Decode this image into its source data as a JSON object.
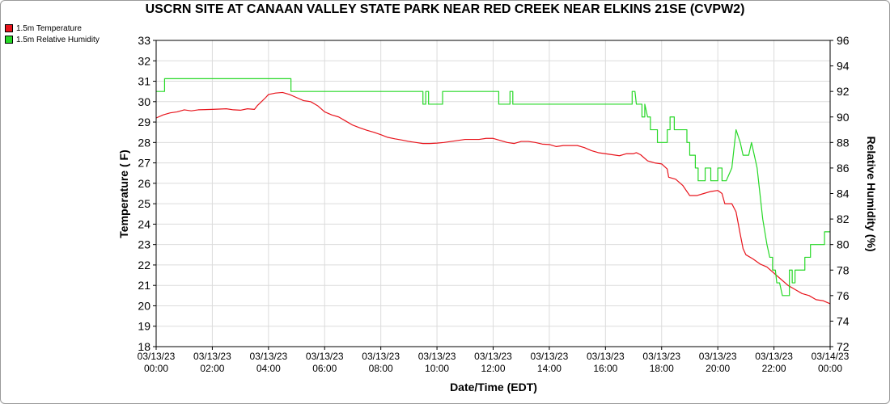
{
  "chart_data": {
    "type": "line",
    "title": "USCRN SITE AT CANAAN VALLEY STATE PARK NEAR RED CREEK NEAR ELKINS 21SE (CVPW2)",
    "xlabel": "Date/Time (EDT)",
    "ylabel_left": "Temperature ( F)",
    "ylabel_right": "Relative Humidity (%)",
    "ylim_left": [
      18,
      33
    ],
    "ylim_right": [
      72,
      96
    ],
    "xlim_hours": [
      0,
      24
    ],
    "grid": true,
    "legend_position": "top-left",
    "x_ticks": [
      {
        "date": "03/13/23",
        "time": "00:00",
        "hour": 0
      },
      {
        "date": "03/13/23",
        "time": "02:00",
        "hour": 2
      },
      {
        "date": "03/13/23",
        "time": "04:00",
        "hour": 4
      },
      {
        "date": "03/13/23",
        "time": "06:00",
        "hour": 6
      },
      {
        "date": "03/13/23",
        "time": "08:00",
        "hour": 8
      },
      {
        "date": "03/13/23",
        "time": "10:00",
        "hour": 10
      },
      {
        "date": "03/13/23",
        "time": "12:00",
        "hour": 12
      },
      {
        "date": "03/13/23",
        "time": "14:00",
        "hour": 14
      },
      {
        "date": "03/13/23",
        "time": "16:00",
        "hour": 16
      },
      {
        "date": "03/13/23",
        "time": "18:00",
        "hour": 18
      },
      {
        "date": "03/13/23",
        "time": "20:00",
        "hour": 20
      },
      {
        "date": "03/13/23",
        "time": "22:00",
        "hour": 22
      },
      {
        "date": "03/14/23",
        "time": "00:00",
        "hour": 24
      }
    ],
    "y_ticks_left": [
      18,
      19,
      20,
      21,
      22,
      23,
      24,
      25,
      26,
      27,
      28,
      29,
      30,
      31,
      32,
      33
    ],
    "y_ticks_right": [
      72,
      74,
      76,
      78,
      80,
      82,
      84,
      86,
      88,
      90,
      92,
      94,
      96
    ],
    "series": [
      {
        "name": "1.5m Temperature",
        "color": "#e8141c",
        "axis": "left",
        "points": [
          [
            0,
            29.2
          ],
          [
            0.25,
            29.35
          ],
          [
            0.5,
            29.45
          ],
          [
            0.75,
            29.5
          ],
          [
            1,
            29.6
          ],
          [
            1.25,
            29.55
          ],
          [
            1.5,
            29.6
          ],
          [
            2,
            29.62
          ],
          [
            2.5,
            29.65
          ],
          [
            2.75,
            29.6
          ],
          [
            3,
            29.58
          ],
          [
            3.25,
            29.65
          ],
          [
            3.5,
            29.62
          ],
          [
            3.6,
            29.8
          ],
          [
            3.75,
            30.0
          ],
          [
            3.9,
            30.2
          ],
          [
            4.0,
            30.35
          ],
          [
            4.25,
            30.42
          ],
          [
            4.5,
            30.45
          ],
          [
            4.75,
            30.35
          ],
          [
            5,
            30.2
          ],
          [
            5.25,
            30.05
          ],
          [
            5.5,
            30.0
          ],
          [
            5.75,
            29.8
          ],
          [
            6,
            29.5
          ],
          [
            6.25,
            29.35
          ],
          [
            6.5,
            29.25
          ],
          [
            6.75,
            29.05
          ],
          [
            7,
            28.85
          ],
          [
            7.25,
            28.72
          ],
          [
            7.5,
            28.6
          ],
          [
            7.75,
            28.5
          ],
          [
            8,
            28.38
          ],
          [
            8.25,
            28.25
          ],
          [
            8.5,
            28.18
          ],
          [
            8.75,
            28.12
          ],
          [
            9,
            28.05
          ],
          [
            9.25,
            28.0
          ],
          [
            9.5,
            27.95
          ],
          [
            9.75,
            27.95
          ],
          [
            10,
            27.97
          ],
          [
            10.25,
            28.0
          ],
          [
            10.5,
            28.05
          ],
          [
            10.75,
            28.1
          ],
          [
            11,
            28.15
          ],
          [
            11.25,
            28.15
          ],
          [
            11.5,
            28.15
          ],
          [
            11.75,
            28.2
          ],
          [
            12,
            28.2
          ],
          [
            12.25,
            28.1
          ],
          [
            12.5,
            28.0
          ],
          [
            12.75,
            27.95
          ],
          [
            13,
            28.05
          ],
          [
            13.25,
            28.05
          ],
          [
            13.5,
            28.0
          ],
          [
            13.75,
            27.92
          ],
          [
            14,
            27.9
          ],
          [
            14.25,
            27.8
          ],
          [
            14.5,
            27.85
          ],
          [
            14.75,
            27.85
          ],
          [
            15,
            27.85
          ],
          [
            15.25,
            27.75
          ],
          [
            15.5,
            27.6
          ],
          [
            15.75,
            27.5
          ],
          [
            16,
            27.45
          ],
          [
            16.25,
            27.4
          ],
          [
            16.5,
            27.35
          ],
          [
            16.75,
            27.45
          ],
          [
            17,
            27.45
          ],
          [
            17.1,
            27.5
          ],
          [
            17.25,
            27.4
          ],
          [
            17.5,
            27.1
          ],
          [
            17.75,
            27.0
          ],
          [
            18,
            26.95
          ],
          [
            18.2,
            26.7
          ],
          [
            18.25,
            26.3
          ],
          [
            18.5,
            26.2
          ],
          [
            18.75,
            25.9
          ],
          [
            19,
            25.4
          ],
          [
            19.25,
            25.4
          ],
          [
            19.5,
            25.5
          ],
          [
            19.75,
            25.6
          ],
          [
            20,
            25.65
          ],
          [
            20.15,
            25.5
          ],
          [
            20.25,
            25.0
          ],
          [
            20.5,
            25.0
          ],
          [
            20.65,
            24.6
          ],
          [
            20.8,
            23.5
          ],
          [
            20.9,
            22.8
          ],
          [
            21,
            22.5
          ],
          [
            21.25,
            22.3
          ],
          [
            21.5,
            22.05
          ],
          [
            21.75,
            21.9
          ],
          [
            22,
            21.6
          ],
          [
            22.25,
            21.3
          ],
          [
            22.5,
            21.0
          ],
          [
            22.75,
            20.8
          ],
          [
            23,
            20.6
          ],
          [
            23.25,
            20.5
          ],
          [
            23.5,
            20.3
          ],
          [
            23.75,
            20.25
          ],
          [
            24,
            20.1
          ]
        ]
      },
      {
        "name": "1.5m Relative Humidity",
        "color": "#27d827",
        "axis": "right",
        "points": [
          [
            0,
            92
          ],
          [
            0.3,
            92
          ],
          [
            0.3,
            93
          ],
          [
            3,
            93
          ],
          [
            4,
            93
          ],
          [
            4.8,
            93
          ],
          [
            4.8,
            92
          ],
          [
            6,
            92
          ],
          [
            9,
            92
          ],
          [
            9.5,
            92
          ],
          [
            9.5,
            91
          ],
          [
            9.6,
            91
          ],
          [
            9.6,
            92
          ],
          [
            9.7,
            92
          ],
          [
            9.7,
            91
          ],
          [
            10.2,
            91
          ],
          [
            10.2,
            92
          ],
          [
            11,
            92
          ],
          [
            12,
            92
          ],
          [
            12.2,
            92
          ],
          [
            12.2,
            91
          ],
          [
            12.6,
            91
          ],
          [
            12.6,
            92
          ],
          [
            12.7,
            92
          ],
          [
            12.7,
            91
          ],
          [
            14,
            91
          ],
          [
            16,
            91
          ],
          [
            16.95,
            91
          ],
          [
            16.95,
            92
          ],
          [
            17.05,
            92
          ],
          [
            17.1,
            91
          ],
          [
            17.3,
            91
          ],
          [
            17.3,
            90
          ],
          [
            17.4,
            90
          ],
          [
            17.4,
            91
          ],
          [
            17.5,
            90
          ],
          [
            17.6,
            90
          ],
          [
            17.6,
            89
          ],
          [
            17.85,
            89
          ],
          [
            17.85,
            88
          ],
          [
            18,
            88
          ],
          [
            18.2,
            88
          ],
          [
            18.2,
            89
          ],
          [
            18.3,
            89
          ],
          [
            18.3,
            90
          ],
          [
            18.45,
            90
          ],
          [
            18.45,
            89
          ],
          [
            18.9,
            89
          ],
          [
            18.9,
            88
          ],
          [
            19.0,
            88
          ],
          [
            19.0,
            87
          ],
          [
            19.2,
            87
          ],
          [
            19.2,
            86
          ],
          [
            19.3,
            86
          ],
          [
            19.3,
            85
          ],
          [
            19.55,
            85
          ],
          [
            19.55,
            86
          ],
          [
            19.75,
            86
          ],
          [
            19.75,
            85
          ],
          [
            20.0,
            85
          ],
          [
            20.0,
            86
          ],
          [
            20.15,
            86
          ],
          [
            20.15,
            85
          ],
          [
            20.3,
            85
          ],
          [
            20.5,
            86
          ],
          [
            20.6,
            88
          ],
          [
            20.65,
            89
          ],
          [
            20.8,
            88
          ],
          [
            20.9,
            87
          ],
          [
            21.1,
            87
          ],
          [
            21.2,
            88
          ],
          [
            21.3,
            87
          ],
          [
            21.4,
            86
          ],
          [
            21.5,
            84
          ],
          [
            21.6,
            82
          ],
          [
            21.75,
            80
          ],
          [
            21.85,
            79
          ],
          [
            21.95,
            79
          ],
          [
            21.95,
            78
          ],
          [
            22.05,
            78
          ],
          [
            22.1,
            77
          ],
          [
            22.2,
            77
          ],
          [
            22.3,
            76
          ],
          [
            22.55,
            76
          ],
          [
            22.55,
            78
          ],
          [
            22.65,
            78
          ],
          [
            22.65,
            77
          ],
          [
            22.75,
            77
          ],
          [
            22.75,
            78
          ],
          [
            23.1,
            78
          ],
          [
            23.1,
            79
          ],
          [
            23.3,
            79
          ],
          [
            23.3,
            80
          ],
          [
            23.8,
            80
          ],
          [
            23.8,
            81
          ],
          [
            24,
            81
          ]
        ]
      }
    ]
  }
}
